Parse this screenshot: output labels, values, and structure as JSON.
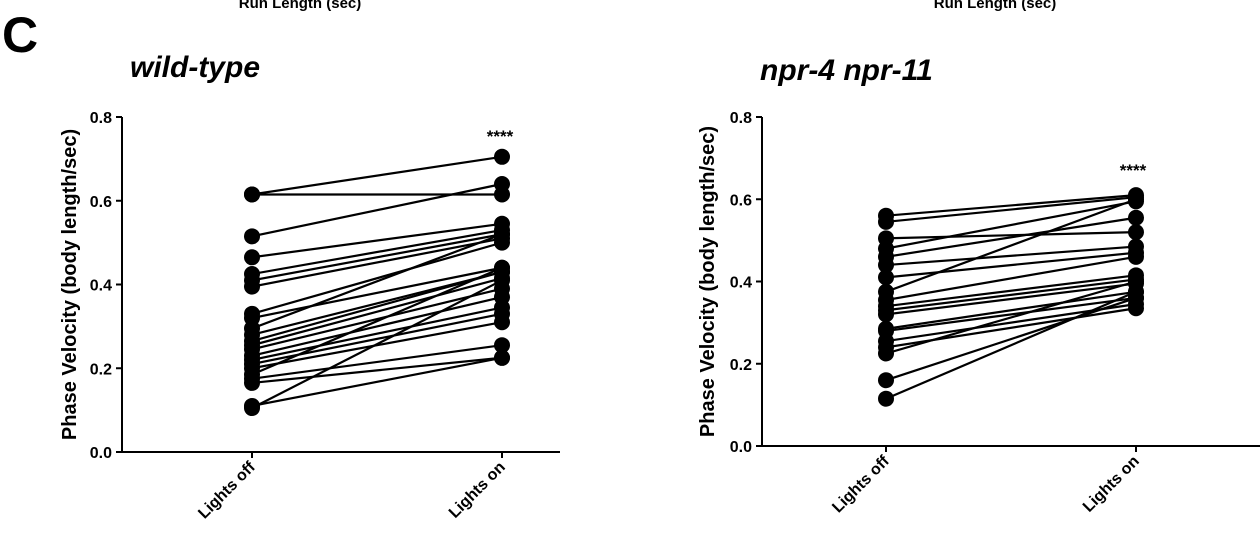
{
  "header": {
    "top_label_left": "Run Length (sec)",
    "top_label_right": "Run Length (sec)",
    "panel_letter": "C"
  },
  "chart_data": [
    {
      "type": "line",
      "title": "wild-type",
      "ylabel": "Phase Velocity (body length/sec)",
      "xlabel": "",
      "categories": [
        "Lights off",
        "Lights on"
      ],
      "ylim": [
        0,
        0.8
      ],
      "yticks": [
        "0.0",
        "0.2",
        "0.4",
        "0.6",
        "0.8"
      ],
      "annotation": "****",
      "pairs": [
        [
          0.615,
          0.705
        ],
        [
          0.615,
          0.615
        ],
        [
          0.515,
          0.64
        ],
        [
          0.465,
          0.545
        ],
        [
          0.425,
          0.53
        ],
        [
          0.41,
          0.52
        ],
        [
          0.395,
          0.51
        ],
        [
          0.33,
          0.5
        ],
        [
          0.32,
          0.44
        ],
        [
          0.295,
          0.52
        ],
        [
          0.28,
          0.43
        ],
        [
          0.265,
          0.43
        ],
        [
          0.255,
          0.415
        ],
        [
          0.245,
          0.39
        ],
        [
          0.23,
          0.37
        ],
        [
          0.22,
          0.345
        ],
        [
          0.21,
          0.33
        ],
        [
          0.2,
          0.31
        ],
        [
          0.185,
          0.44
        ],
        [
          0.175,
          0.255
        ],
        [
          0.165,
          0.225
        ],
        [
          0.11,
          0.225
        ],
        [
          0.105,
          0.41
        ]
      ]
    },
    {
      "type": "line",
      "title": "npr-4 npr-11",
      "ylabel": "Phase Velocity (body length/sec)",
      "xlabel": "",
      "categories": [
        "Lights off",
        "Lights on"
      ],
      "ylim": [
        0,
        0.8
      ],
      "yticks": [
        "0.0",
        "0.2",
        "0.4",
        "0.6",
        "0.8"
      ],
      "annotation": "****",
      "pairs": [
        [
          0.56,
          0.61
        ],
        [
          0.545,
          0.605
        ],
        [
          0.505,
          0.52
        ],
        [
          0.48,
          0.595
        ],
        [
          0.46,
          0.555
        ],
        [
          0.44,
          0.485
        ],
        [
          0.41,
          0.47
        ],
        [
          0.375,
          0.6
        ],
        [
          0.355,
          0.46
        ],
        [
          0.34,
          0.415
        ],
        [
          0.33,
          0.405
        ],
        [
          0.32,
          0.395
        ],
        [
          0.285,
          0.375
        ],
        [
          0.28,
          0.36
        ],
        [
          0.255,
          0.345
        ],
        [
          0.24,
          0.335
        ],
        [
          0.225,
          0.4
        ],
        [
          0.16,
          0.36
        ],
        [
          0.115,
          0.375
        ]
      ]
    }
  ]
}
